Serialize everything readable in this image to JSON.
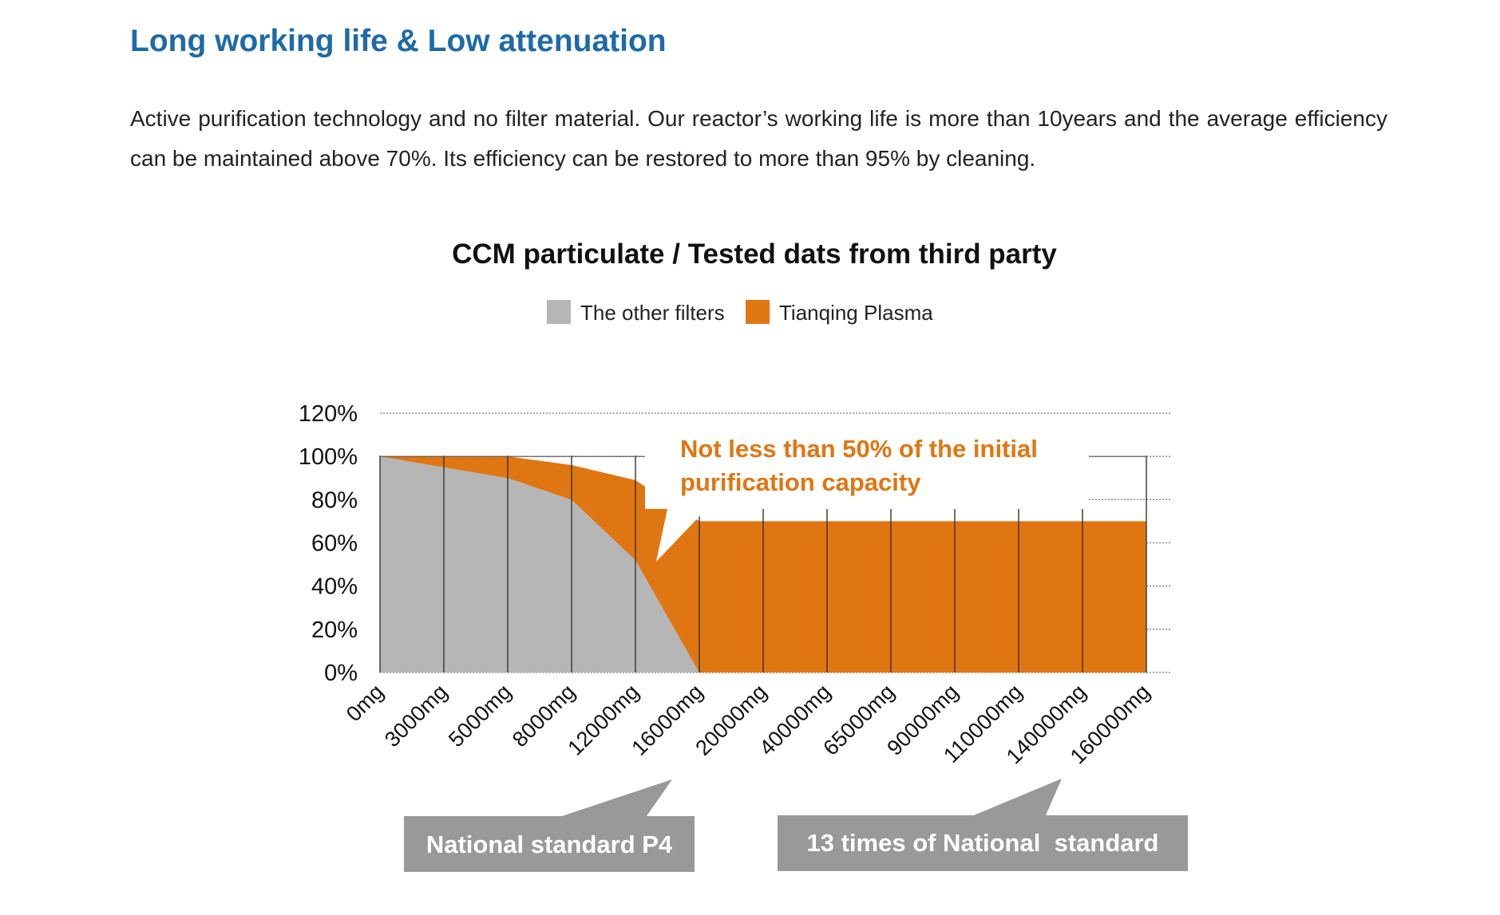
{
  "page": {
    "heading": "Long working life & Low attenuation",
    "description": "Active purification technology and no filter material. Our reactor’s working life is more than 10years and the average efficiency can be maintained above 70%. Its efficiency can be restored to more than 95% by cleaning."
  },
  "colors": {
    "heading": "#1e6aa8",
    "other_filters": "#b6b6b6",
    "tianqing": "#e07612",
    "callout_gray": "#999999"
  },
  "chart_data": {
    "type": "area",
    "title": "CCM particulate / Tested dats from third party",
    "x": [
      "0mg",
      "3000mg",
      "5000mg",
      "8000mg",
      "12000mg",
      "16000mg",
      "20000mg",
      "40000mg",
      "65000mg",
      "90000mg",
      "110000mg",
      "140000mg",
      "160000mg"
    ],
    "series": [
      {
        "name": "The other filters",
        "values": [
          100,
          95,
          90,
          80,
          52,
          0,
          null,
          null,
          null,
          null,
          null,
          null,
          null
        ]
      },
      {
        "name": "Tianqing Plasma",
        "values": [
          100,
          100,
          100,
          96,
          89,
          70,
          70,
          70,
          70,
          70,
          70,
          70,
          70
        ]
      }
    ],
    "y_ticks": [
      "0%",
      "20%",
      "40%",
      "60%",
      "80%",
      "100%",
      "120%"
    ],
    "ylim": [
      0,
      120
    ],
    "grid": true,
    "legend": "top-center",
    "annotations": {
      "capacity_note": "Not less than 50% of the initial purification capacity",
      "national_standard": "National standard P4",
      "times_standard": "13 times of National  standard"
    }
  }
}
